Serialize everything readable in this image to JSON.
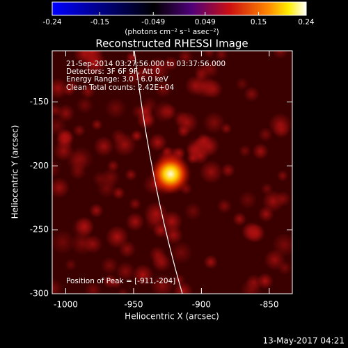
{
  "chart_data": {
    "type": "image",
    "title": "Reconstructed RHESSI Image",
    "xlabel": "Heliocentric X (arcsec)",
    "ylabel": "Heliocentric Y (arcsec)",
    "xlim": [
      -1010,
      -833
    ],
    "xticks": [
      -1000,
      -950,
      -900,
      -850
    ],
    "ylim": [
      -300,
      -110
    ],
    "yticks": [
      -300,
      -250,
      -200,
      -150
    ],
    "colorbar": {
      "label": "(photons cm⁻² s⁻¹ asec⁻²)",
      "clim": [
        -0.24,
        0.24
      ],
      "ticks": [
        -0.24,
        -0.15,
        -0.049,
        0.049,
        0.15,
        0.24
      ]
    },
    "annotations": [
      "21-Sep-2014 03:27:56.000 to 03:37:56.000",
      "Detectors: 3F 6F 9F, Att 0",
      "Energy Range: 3.0 - 6.0 keV",
      "Clean     Total counts: 2.42E+04"
    ],
    "peak_label": "Position of Peak = [-911,-204]",
    "footer": "13-May-2017 04:21"
  }
}
